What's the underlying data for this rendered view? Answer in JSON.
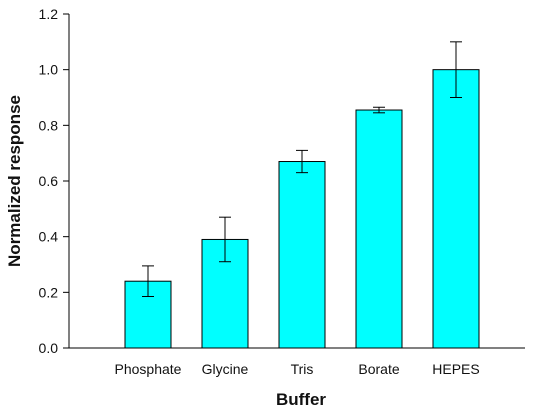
{
  "chart_data": {
    "type": "bar",
    "title": "",
    "xlabel": "Buffer",
    "ylabel": "Normalized response",
    "categories": [
      "Phosphate",
      "Glycine",
      "Tris",
      "Borate",
      "HEPES"
    ],
    "values": [
      0.24,
      0.39,
      0.67,
      0.855,
      1.0
    ],
    "error": [
      0.055,
      0.08,
      0.04,
      0.01,
      0.1
    ],
    "ylim": [
      0,
      1.2
    ],
    "yticks": [
      "0.0",
      "0.2",
      "0.4",
      "0.6",
      "0.8",
      "1.0",
      "1.2"
    ],
    "grid": false,
    "legend": "none",
    "bar_color": "#00FFFF",
    "edge_color": "#000000"
  }
}
